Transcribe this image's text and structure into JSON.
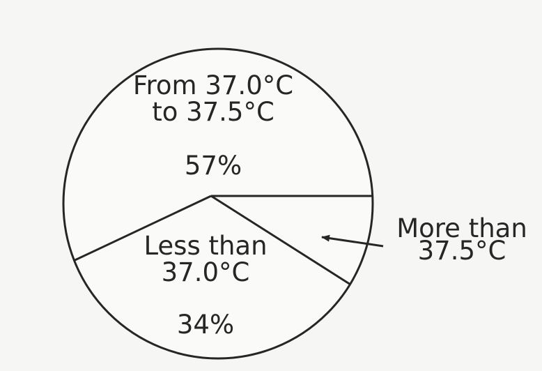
{
  "chart_data": {
    "type": "pie",
    "title": "",
    "slices": [
      {
        "label_lines": [
          "From 37.0°C",
          "to 37.5°C"
        ],
        "value": 57,
        "value_label": "57%"
      },
      {
        "label_lines": [
          "Less than",
          "37.0°C"
        ],
        "value": 34,
        "value_label": "34%"
      },
      {
        "label_lines": [
          "More than",
          "37.5°C"
        ],
        "value": 9,
        "value_label": ""
      }
    ],
    "callout": {
      "slice_index": 2,
      "style": "arrow"
    },
    "colors": {
      "stroke": "#262626",
      "fill": "#fafaf8"
    }
  }
}
